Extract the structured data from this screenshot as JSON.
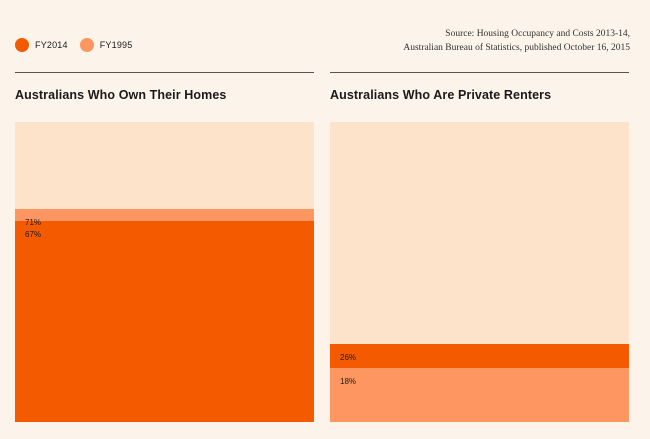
{
  "legend": {
    "items": [
      {
        "label": "FY2014",
        "color": "#f45a00"
      },
      {
        "label": "FY1995",
        "color": "#fd9660"
      }
    ]
  },
  "source": {
    "line1": "Source: Housing Occupancy and Costs 2013-14,",
    "line2": "Australian Bureau of Statistics, published October 16, 2015"
  },
  "colors": {
    "background": "#fcf3ea",
    "plot_background": "#fee3cb",
    "fy2014": "#f45a00",
    "fy1995": "#fd9660"
  },
  "chart_data": [
    {
      "type": "bar",
      "title": "Australians Who Own Their Homes",
      "ylim": [
        0,
        100
      ],
      "series": [
        {
          "name": "FY1995",
          "value": 71,
          "label": "71%"
        },
        {
          "name": "FY2014",
          "value": 67,
          "label": "67%"
        }
      ]
    },
    {
      "type": "bar",
      "title": "Australians Who Are Private Renters",
      "ylim": [
        0,
        100
      ],
      "series": [
        {
          "name": "FY2014",
          "value": 26,
          "label": "26%"
        },
        {
          "name": "FY1995",
          "value": 18,
          "label": "18%"
        }
      ]
    }
  ]
}
